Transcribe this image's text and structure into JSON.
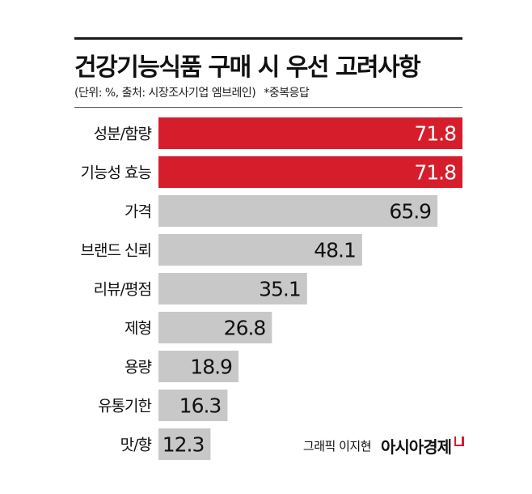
{
  "header": {
    "title": "건강기능식품 구매 시 우선 고려사항",
    "source": "(단위: %, 출처: 시장조사기업 엠브레인)",
    "note": "*중복응답"
  },
  "colors": {
    "highlight": "#d61d2b",
    "default": "#c8c8c8",
    "highlight_text": "#ffffff",
    "default_text": "#111111"
  },
  "chart_data": {
    "type": "bar",
    "orientation": "horizontal",
    "title": "건강기능식품 구매 시 우선 고려사항",
    "subtitle": "(단위: %, 출처: 시장조사기업 엠브레인)",
    "annotation": "*중복응답",
    "unit": "%",
    "categories": [
      "성분/함량",
      "기능성 효능",
      "가격",
      "브랜드 신뢰",
      "리뷰/평점",
      "제형",
      "용량",
      "유통기한",
      "맛/향"
    ],
    "values": [
      71.8,
      71.8,
      65.9,
      48.1,
      35.1,
      26.8,
      18.9,
      16.3,
      12.3
    ],
    "value_labels": [
      "71.8",
      "71.8",
      "65.9",
      "48.1",
      "35.1",
      "26.8",
      "18.9",
      "16.3",
      "12.3"
    ],
    "highlighted": [
      true,
      true,
      false,
      false,
      false,
      false,
      false,
      false,
      false
    ],
    "xlim": [
      0,
      71.8
    ],
    "grid": false,
    "legend": "none"
  },
  "credit": {
    "graphic_by": "그래픽 이지현",
    "brand": "아시아경제"
  }
}
